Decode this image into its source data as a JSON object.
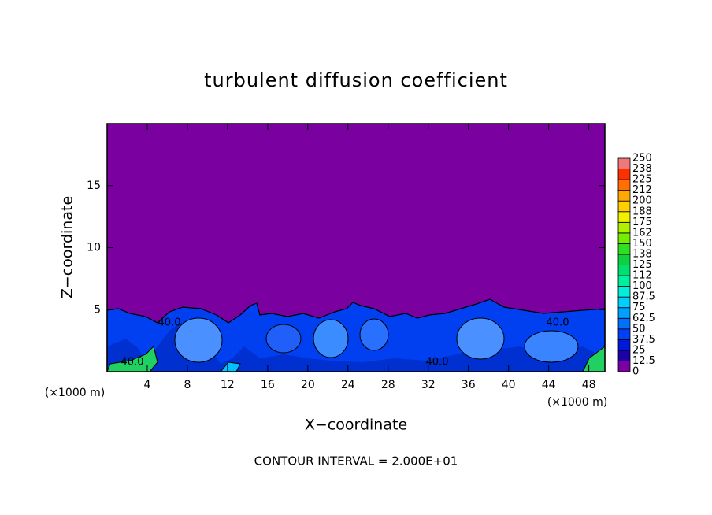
{
  "chart_data": {
    "type": "contour",
    "title": "turbulent diffusion coefficient",
    "x_label": "X−coordinate",
    "y_label": "Z−coordinate",
    "x_unit_left": "(×1000 m)",
    "x_unit_right": "(×1000 m)",
    "footer": "CONTOUR INTERVAL = 2.000E+01",
    "xlim": [
      0,
      49.6
    ],
    "ylim": [
      0,
      20
    ],
    "xticks": [
      4,
      8,
      12,
      16,
      20,
      24,
      28,
      32,
      36,
      40,
      44,
      48
    ],
    "yticks": [
      5,
      10,
      15
    ],
    "contour_labels": [
      "40.0",
      "40.0",
      "40.0",
      "40.0"
    ],
    "colorbar": {
      "levels": [
        0,
        12.5,
        25,
        37.5,
        50,
        62.5,
        75,
        87.5,
        100,
        112,
        125,
        138,
        150,
        162,
        175,
        188,
        200,
        212,
        225,
        238,
        250
      ],
      "colors": [
        "#7a00a0",
        "#1c00a8",
        "#0018d8",
        "#0040f8",
        "#0070ff",
        "#00a0ff",
        "#00d0ff",
        "#00f0d8",
        "#00f0a0",
        "#00e070",
        "#10d040",
        "#30e020",
        "#70f000",
        "#b0f000",
        "#f0f000",
        "#ffd000",
        "#ffa800",
        "#ff7000",
        "#ff3000",
        "#f07878"
      ]
    }
  }
}
